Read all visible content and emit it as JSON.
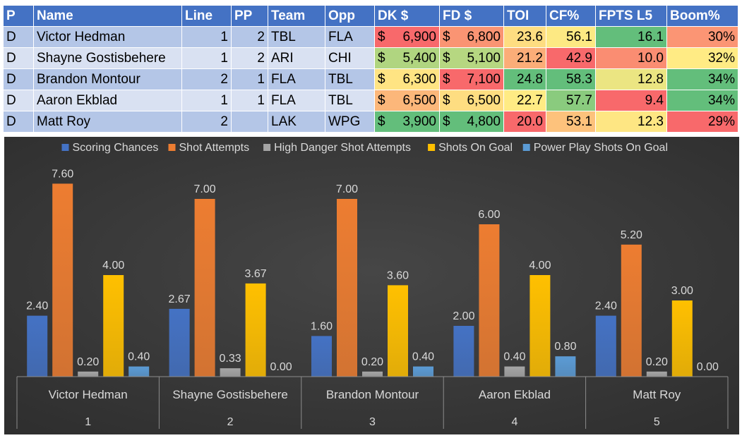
{
  "table": {
    "headers": [
      "P",
      "Name",
      "Line",
      "PP",
      "Team",
      "Opp",
      "DK $",
      "FD $",
      "TOI",
      "CF%",
      "FPTS L5",
      "Boom%"
    ],
    "currency_symbol": "$",
    "rows": [
      {
        "p": "D",
        "name": "Victor Hedman",
        "line": "1",
        "pp": "2",
        "team": "TBL",
        "opp": "FLA",
        "dk": "6,900",
        "fd": "6,800",
        "toi": "23.6",
        "cf": "56.1",
        "fpts": "16.1",
        "boom": "30%",
        "colors": {
          "dk": "#f8696b",
          "fd": "#fa9473",
          "toi": "#fedd81",
          "cf": "#fde983",
          "fpts": "#63be7b",
          "boom": "#fb9574"
        }
      },
      {
        "p": "D",
        "name": "Shayne Gostisbehere",
        "line": "1",
        "pp": "2",
        "team": "ARI",
        "opp": "CHI",
        "dk": "5,400",
        "fd": "5,100",
        "toi": "21.2",
        "cf": "42.9",
        "fpts": "10.0",
        "boom": "32%",
        "colors": {
          "dk": "#b0d580",
          "fd": "#b6d781",
          "toi": "#fbad78",
          "cf": "#f8696b",
          "fpts": "#fa8d72",
          "boom": "#ffeb84"
        }
      },
      {
        "p": "D",
        "name": "Brandon Montour",
        "line": "2",
        "pp": "1",
        "team": "FLA",
        "opp": "TBL",
        "dk": "6,300",
        "fd": "7,100",
        "toi": "24.8",
        "cf": "58.3",
        "fpts": "12.8",
        "boom": "34%",
        "colors": {
          "dk": "#ffe483",
          "fd": "#f8696b",
          "toi": "#63be7b",
          "cf": "#63be7b",
          "fpts": "#ebe582",
          "boom": "#63be7b"
        }
      },
      {
        "p": "D",
        "name": "Aaron Ekblad",
        "line": "1",
        "pp": "1",
        "team": "FLA",
        "opp": "TBL",
        "dk": "6,500",
        "fd": "6,500",
        "toi": "22.7",
        "cf": "57.7",
        "fpts": "9.4",
        "boom": "34%",
        "colors": {
          "dk": "#fcb77a",
          "fd": "#fedd81",
          "toi": "#ffeb84",
          "cf": "#8acb7e",
          "fpts": "#f8696b",
          "boom": "#63be7b"
        }
      },
      {
        "p": "D",
        "name": "Matt Roy",
        "line": "2",
        "pp": "",
        "team": "LAK",
        "opp": "WPG",
        "dk": "3,900",
        "fd": "4,800",
        "toi": "20.0",
        "cf": "53.1",
        "fpts": "12.3",
        "boom": "29%",
        "colors": {
          "dk": "#63be7b",
          "fd": "#63be7b",
          "toi": "#f8696b",
          "cf": "#fdc27c",
          "fpts": "#fee683",
          "boom": "#f8696b"
        }
      }
    ]
  },
  "chart_data": {
    "type": "bar",
    "categories": [
      "Victor Hedman",
      "Shayne Gostisbehere",
      "Brandon Montour",
      "Aaron Ekblad",
      "Matt Roy"
    ],
    "category_numbers": [
      "1",
      "2",
      "3",
      "4",
      "5"
    ],
    "series": [
      {
        "name": "Scoring Chances",
        "values": [
          2.4,
          2.67,
          1.6,
          2.0,
          2.4
        ],
        "color": "#4472c4"
      },
      {
        "name": "Shot Attempts",
        "values": [
          7.6,
          7.0,
          7.0,
          6.0,
          5.2
        ],
        "color": "#ed7d31"
      },
      {
        "name": "High Danger Shot Attempts",
        "values": [
          0.2,
          0.33,
          0.2,
          0.4,
          0.2
        ],
        "color": "#a5a5a5"
      },
      {
        "name": "Shots On Goal",
        "values": [
          4.0,
          3.67,
          3.6,
          4.0,
          3.0
        ],
        "color": "#ffc000"
      },
      {
        "name": "Power Play Shots On Goal",
        "values": [
          0.4,
          0.0,
          0.4,
          0.8,
          0.0
        ],
        "color": "#5b9bd5"
      }
    ],
    "value_format": "2 decimals",
    "data_labels": true,
    "legend": "top",
    "grid": false,
    "ylim": [
      0,
      8.0
    ],
    "background": "#2f2f2f"
  }
}
